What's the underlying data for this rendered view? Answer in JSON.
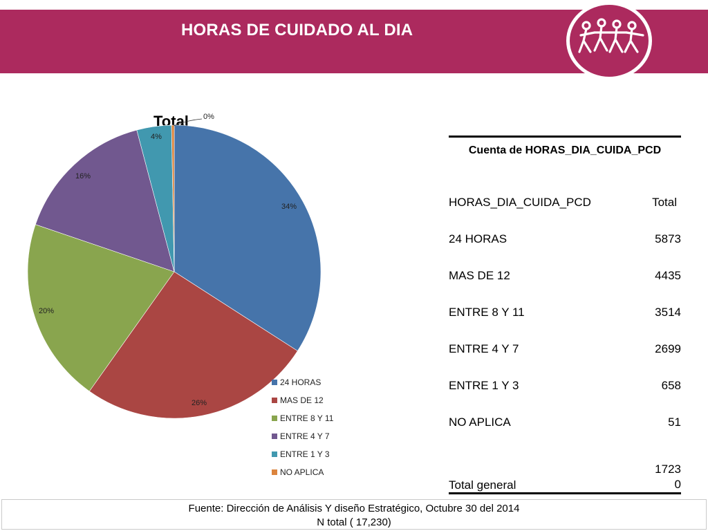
{
  "header": {
    "title": "HORAS DE CUIDADO AL DIA",
    "brand_color": "#ac2a5e",
    "logo_icon": "people-holding-hands-icon"
  },
  "chart_data": {
    "type": "pie",
    "title": "Total",
    "categories": [
      "24 HORAS",
      "MAS DE 12",
      "ENTRE 8 Y 11",
      "ENTRE 4 Y 7",
      "ENTRE 1 Y 3",
      "NO APLICA"
    ],
    "values": [
      5873,
      4435,
      3514,
      2699,
      658,
      51
    ],
    "percent_labels": [
      "34%",
      "26%",
      "20%",
      "16%",
      "4%",
      "0%"
    ],
    "colors": [
      "#4674aa",
      "#aa4643",
      "#89a54e",
      "#71588f",
      "#4198af",
      "#db843d"
    ],
    "legend_position": "bottom-right"
  },
  "table": {
    "caption": "Cuenta de HORAS_DIA_CUIDA_PCD",
    "header_label": "HORAS_DIA_CUIDA_PCD",
    "header_value": "Total",
    "rows": [
      {
        "label": "24 HORAS",
        "value": "5873"
      },
      {
        "label": "MAS DE 12",
        "value": "4435"
      },
      {
        "label": "ENTRE 8 Y 11",
        "value": "3514"
      },
      {
        "label": "ENTRE 4 Y 7",
        "value": "2699"
      },
      {
        "label": "ENTRE 1 Y 3",
        "value": "658"
      },
      {
        "label": "NO APLICA",
        "value": "51"
      }
    ],
    "total_label": "Total general",
    "total_value": "17230"
  },
  "footer": {
    "source": "Fuente: Dirección de Análisis Y diseño Estratégico, Octubre 30 del 2014",
    "n_total": "N total ( 17,230)"
  }
}
